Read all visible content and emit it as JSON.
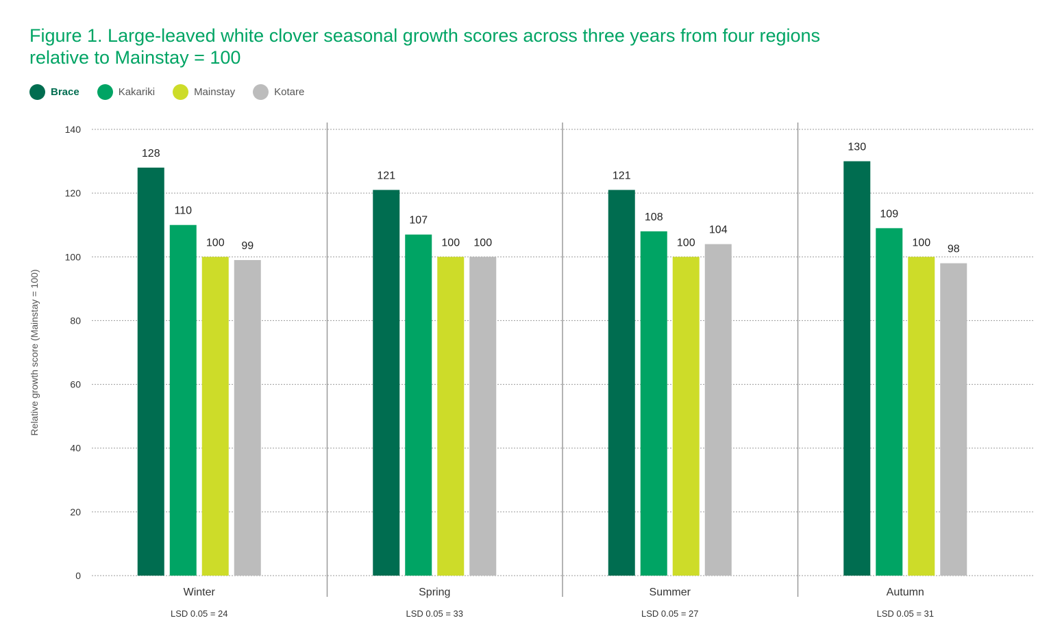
{
  "title_line1": "Figure 1. Large-leaved white clover seasonal growth scores across three years from four regions",
  "title_line2": "relative to Mainstay = 100",
  "colors": {
    "title": "#00a464",
    "axis_text": "#333333",
    "grid": "#9a9a9a",
    "separator": "#9a9a9a"
  },
  "chart_data": {
    "type": "bar",
    "categories": [
      "Winter",
      "Spring",
      "Summer",
      "Autumn"
    ],
    "lsd_labels": [
      "LSD 0.05 = 24",
      "LSD 0.05 = 33",
      "LSD 0.05 = 27",
      "LSD 0.05 = 31"
    ],
    "series": [
      {
        "name": "Brace",
        "color": "#006d50",
        "values": [
          128,
          121,
          121,
          130
        ]
      },
      {
        "name": "Kakariki",
        "color": "#00a464",
        "values": [
          110,
          107,
          108,
          109
        ]
      },
      {
        "name": "Mainstay",
        "color": "#cddc29",
        "values": [
          100,
          100,
          100,
          100
        ]
      },
      {
        "name": "Kotare",
        "color": "#bcbcbc",
        "values": [
          99,
          100,
          104,
          98
        ]
      }
    ],
    "data_labels": [
      [
        "128",
        "110",
        "100",
        "99"
      ],
      [
        "121",
        "107",
        "100",
        "100"
      ],
      [
        "121",
        "108",
        "100",
        "104"
      ],
      [
        "130",
        "109",
        "100",
        "98"
      ]
    ],
    "ylabel": "Relative growth score (Mainstay = 100)",
    "xlabel": "",
    "ylim": [
      0,
      140
    ],
    "yticks": [
      0,
      20,
      40,
      60,
      80,
      100,
      120,
      140
    ],
    "ytick_labels": [
      "0",
      "20",
      "40",
      "60",
      "80",
      "100",
      "120",
      "140"
    ],
    "grid": true,
    "legend_position": "top-left"
  }
}
